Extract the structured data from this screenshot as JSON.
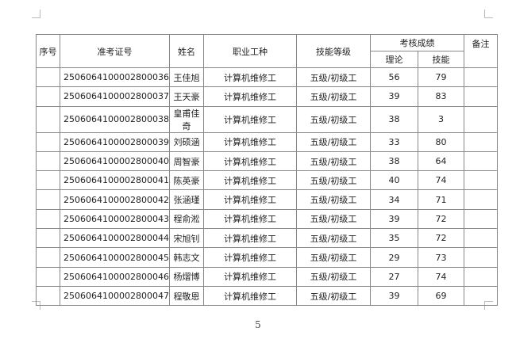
{
  "table": {
    "headers": {
      "seq": "序号",
      "exam_id": "准考证号",
      "name": "姓名",
      "occupation": "职业工种",
      "level": "技能等级",
      "score": "考核成绩",
      "theory": "理论",
      "skill": "技能",
      "remark": "备注"
    },
    "rows": [
      {
        "exam_id": "2506064100002800036",
        "name": "王佳旭",
        "occupation": "计算机维修工",
        "level": "五级/初级工",
        "theory": "56",
        "skill": "79"
      },
      {
        "exam_id": "2506064100002800037",
        "name": "王天豪",
        "occupation": "计算机维修工",
        "level": "五级/初级工",
        "theory": "39",
        "skill": "83"
      },
      {
        "exam_id": "2506064100002800038",
        "name": "皇甫佳奇",
        "occupation": "计算机维修工",
        "level": "五级/初级工",
        "theory": "38",
        "skill": "3"
      },
      {
        "exam_id": "2506064100002800039",
        "name": "刘硕涵",
        "occupation": "计算机维修工",
        "level": "五级/初级工",
        "theory": "33",
        "skill": "80"
      },
      {
        "exam_id": "2506064100002800040",
        "name": "周智豪",
        "occupation": "计算机维修工",
        "level": "五级/初级工",
        "theory": "38",
        "skill": "64"
      },
      {
        "exam_id": "2506064100002800041",
        "name": "陈英豪",
        "occupation": "计算机维修工",
        "level": "五级/初级工",
        "theory": "40",
        "skill": "74"
      },
      {
        "exam_id": "2506064100002800042",
        "name": "张涵瑾",
        "occupation": "计算机维修工",
        "level": "五级/初级工",
        "theory": "34",
        "skill": "71"
      },
      {
        "exam_id": "2506064100002800043",
        "name": "程俞淞",
        "occupation": "计算机维修工",
        "level": "五级/初级工",
        "theory": "39",
        "skill": "72"
      },
      {
        "exam_id": "2506064100002800044",
        "name": "宋旭钊",
        "occupation": "计算机维修工",
        "level": "五级/初级工",
        "theory": "35",
        "skill": "72"
      },
      {
        "exam_id": "2506064100002800045",
        "name": "韩志文",
        "occupation": "计算机维修工",
        "level": "五级/初级工",
        "theory": "29",
        "skill": "73"
      },
      {
        "exam_id": "2506064100002800046",
        "name": "杨熠博",
        "occupation": "计算机维修工",
        "level": "五级/初级工",
        "theory": "27",
        "skill": "74"
      },
      {
        "exam_id": "2506064100002800047",
        "name": "程敬恩",
        "occupation": "计算机维修工",
        "level": "五级/初级工",
        "theory": "39",
        "skill": "69"
      }
    ]
  },
  "page_number": "5"
}
